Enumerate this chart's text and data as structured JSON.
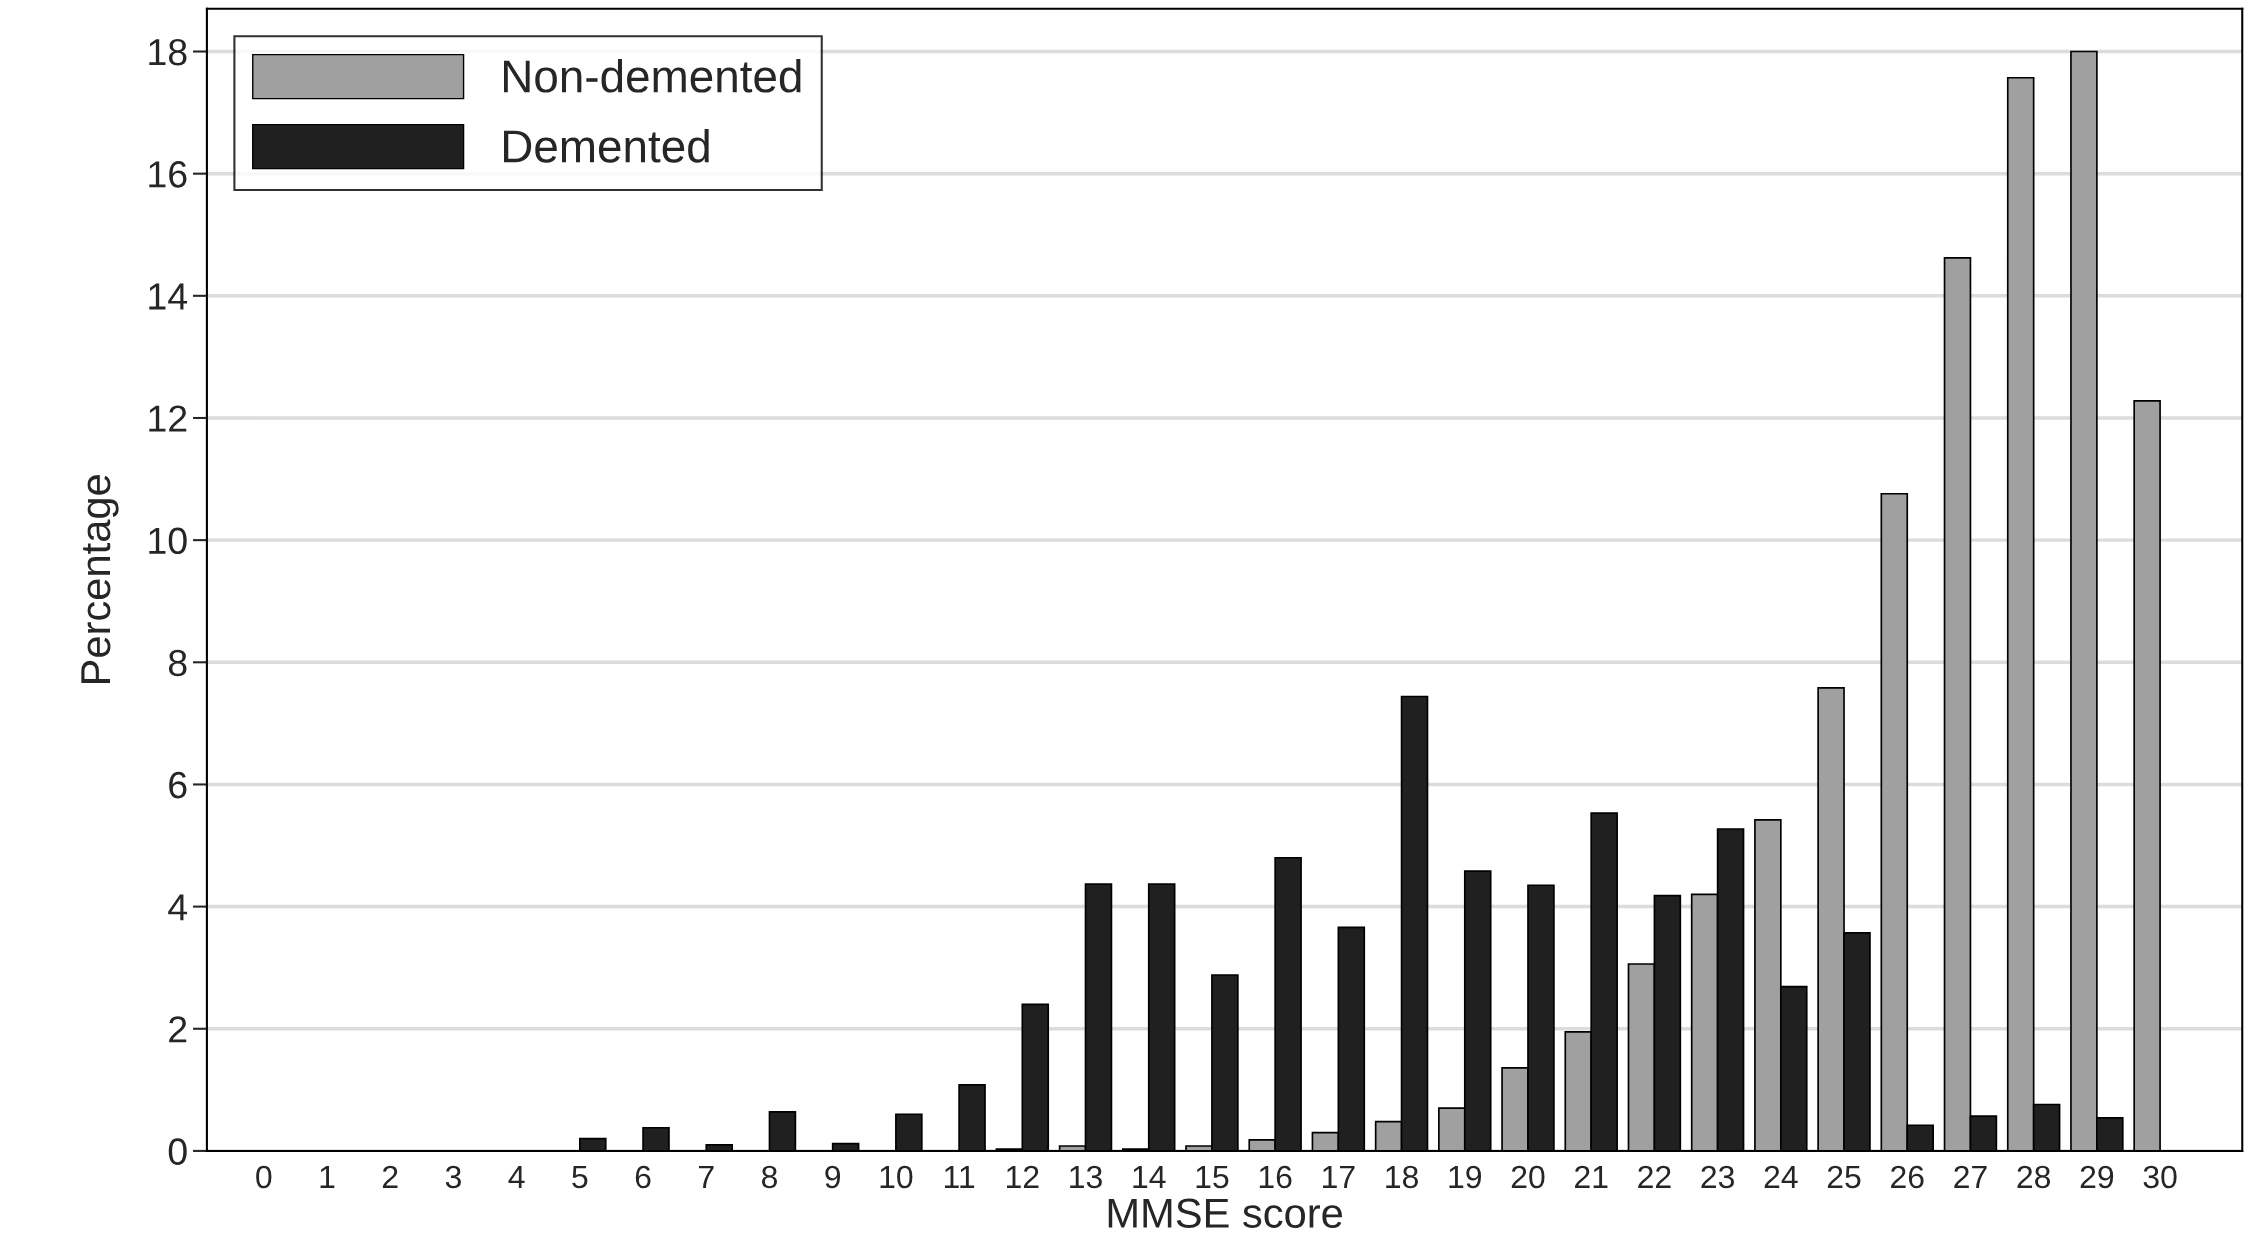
{
  "chart_data": {
    "type": "bar",
    "xlabel": "MMSE score",
    "ylabel": "Percentage",
    "categories": [
      "0",
      "1",
      "2",
      "3",
      "4",
      "5",
      "6",
      "7",
      "8",
      "9",
      "10",
      "11",
      "12",
      "13",
      "14",
      "15",
      "16",
      "17",
      "18",
      "19",
      "20",
      "21",
      "22",
      "23",
      "24",
      "25",
      "26",
      "27",
      "28",
      "29",
      "30"
    ],
    "series": [
      {
        "name": "Non-demented",
        "color": "#a0a0a0",
        "values": [
          null,
          null,
          null,
          null,
          null,
          null,
          null,
          null,
          null,
          null,
          null,
          null,
          0.03,
          0.08,
          0.03,
          0.08,
          0.18,
          0.3,
          0.48,
          0.7,
          1.36,
          1.95,
          3.06,
          4.2,
          5.42,
          7.58,
          10.76,
          14.62,
          17.57,
          18.0,
          12.28
        ]
      },
      {
        "name": "Demented",
        "color": "#202020",
        "values": [
          null,
          null,
          null,
          null,
          null,
          0.2,
          0.38,
          0.1,
          0.64,
          0.12,
          0.6,
          1.08,
          2.4,
          4.37,
          4.37,
          2.88,
          4.8,
          3.66,
          7.44,
          4.58,
          4.35,
          5.53,
          4.18,
          5.27,
          2.69,
          3.57,
          0.42,
          0.57,
          0.76,
          0.54,
          null
        ]
      }
    ],
    "ylim": [
      0,
      18.7
    ],
    "yticks": [
      0,
      2,
      4,
      6,
      8,
      10,
      12,
      14,
      16,
      18
    ],
    "grid": "y",
    "legend": "top left"
  }
}
